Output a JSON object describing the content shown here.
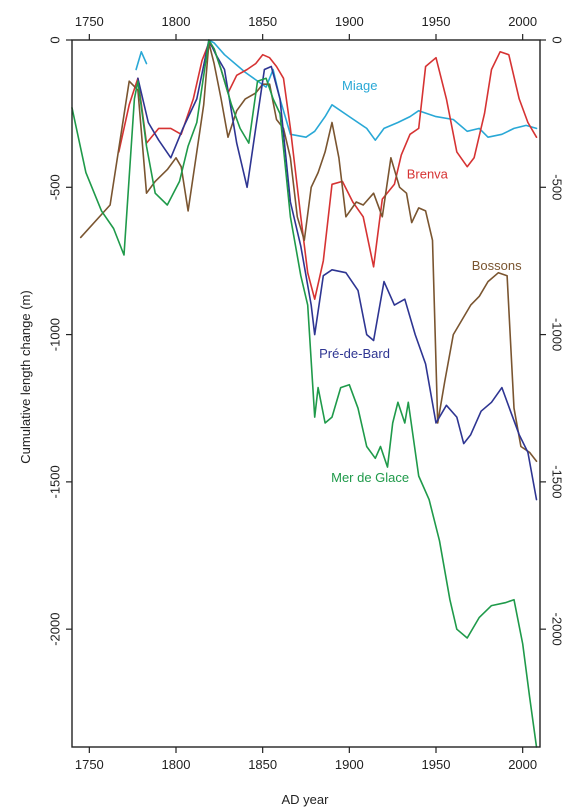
{
  "chart_data": {
    "type": "line",
    "title": "",
    "xlabel": "AD year",
    "ylabel": "Cumulative length change (m)",
    "xlim": [
      1740,
      2010
    ],
    "ylim": [
      -2400,
      0
    ],
    "x_ticks": [
      1750,
      1800,
      1850,
      1900,
      1950,
      2000
    ],
    "y_ticks": [
      0,
      -500,
      -1000,
      -1500,
      -2000
    ],
    "grid": false,
    "axes": [
      "bottom",
      "top",
      "left",
      "right"
    ],
    "series": [
      {
        "name": "Miage",
        "color": "#29a8d6",
        "segments": [
          [
            [
              1777,
              -100
            ],
            [
              1780,
              -40
            ],
            [
              1783,
              -80
            ]
          ],
          [
            [
              1819,
              0
            ],
            [
              1822,
              -10
            ],
            [
              1828,
              -50
            ],
            [
              1840,
              -110
            ],
            [
              1852,
              -160
            ],
            [
              1856,
              -100
            ],
            [
              1860,
              -200
            ],
            [
              1866,
              -320
            ],
            [
              1875,
              -330
            ],
            [
              1880,
              -310
            ],
            [
              1886,
              -260
            ],
            [
              1890,
              -220
            ],
            [
              1900,
              -260
            ],
            [
              1910,
              -300
            ],
            [
              1915,
              -340
            ],
            [
              1920,
              -300
            ],
            [
              1928,
              -280
            ],
            [
              1935,
              -260
            ],
            [
              1940,
              -240
            ],
            [
              1950,
              -260
            ],
            [
              1960,
              -270
            ],
            [
              1968,
              -310
            ],
            [
              1975,
              -300
            ],
            [
              1980,
              -330
            ],
            [
              1988,
              -320
            ],
            [
              1995,
              -300
            ],
            [
              2002,
              -290
            ],
            [
              2008,
              -300
            ]
          ]
        ]
      },
      {
        "name": "Brenva",
        "color": "#d63333",
        "segments": [
          [
            [
              1767,
              -380
            ],
            [
              1773,
              -220
            ],
            [
              1778,
              -130
            ],
            [
              1783,
              -350
            ],
            [
              1790,
              -300
            ],
            [
              1797,
              -300
            ],
            [
              1803,
              -320
            ],
            [
              1810,
              -200
            ],
            [
              1815,
              -70
            ],
            [
              1819,
              -10
            ],
            [
              1822,
              -30
            ],
            [
              1826,
              -100
            ],
            [
              1830,
              -180
            ],
            [
              1835,
              -120
            ],
            [
              1841,
              -100
            ],
            [
              1846,
              -80
            ],
            [
              1850,
              -50
            ],
            [
              1854,
              -60
            ],
            [
              1858,
              -90
            ],
            [
              1862,
              -130
            ],
            [
              1866,
              -300
            ],
            [
              1872,
              -600
            ],
            [
              1876,
              -790
            ],
            [
              1880,
              -880
            ],
            [
              1885,
              -750
            ],
            [
              1890,
              -490
            ],
            [
              1896,
              -480
            ],
            [
              1902,
              -550
            ],
            [
              1908,
              -600
            ],
            [
              1914,
              -770
            ],
            [
              1919,
              -540
            ],
            [
              1926,
              -490
            ],
            [
              1930,
              -390
            ],
            [
              1935,
              -320
            ],
            [
              1940,
              -300
            ],
            [
              1944,
              -90
            ],
            [
              1950,
              -60
            ],
            [
              1956,
              -200
            ],
            [
              1962,
              -380
            ],
            [
              1968,
              -430
            ],
            [
              1972,
              -400
            ],
            [
              1978,
              -250
            ],
            [
              1982,
              -100
            ],
            [
              1987,
              -40
            ],
            [
              1992,
              -50
            ],
            [
              1998,
              -200
            ],
            [
              2003,
              -280
            ],
            [
              2008,
              -330
            ]
          ]
        ]
      },
      {
        "name": "Bossons",
        "color": "#7a5530",
        "segments": [
          [
            [
              1745,
              -670
            ],
            [
              1762,
              -560
            ],
            [
              1773,
              -140
            ],
            [
              1778,
              -170
            ],
            [
              1783,
              -520
            ],
            [
              1788,
              -480
            ],
            [
              1795,
              -440
            ],
            [
              1800,
              -400
            ],
            [
              1803,
              -430
            ],
            [
              1807,
              -580
            ],
            [
              1812,
              -380
            ],
            [
              1816,
              -220
            ],
            [
              1819,
              -10
            ],
            [
              1822,
              -80
            ],
            [
              1826,
              -200
            ],
            [
              1830,
              -330
            ],
            [
              1835,
              -240
            ],
            [
              1840,
              -200
            ],
            [
              1846,
              -180
            ],
            [
              1850,
              -150
            ],
            [
              1854,
              -150
            ],
            [
              1858,
              -270
            ],
            [
              1862,
              -300
            ],
            [
              1866,
              -400
            ],
            [
              1870,
              -600
            ],
            [
              1874,
              -680
            ],
            [
              1878,
              -500
            ],
            [
              1882,
              -450
            ],
            [
              1886,
              -380
            ],
            [
              1890,
              -280
            ],
            [
              1894,
              -400
            ],
            [
              1898,
              -600
            ],
            [
              1904,
              -550
            ],
            [
              1908,
              -560
            ],
            [
              1914,
              -520
            ],
            [
              1919,
              -600
            ],
            [
              1924,
              -400
            ],
            [
              1929,
              -500
            ],
            [
              1933,
              -520
            ],
            [
              1936,
              -620
            ],
            [
              1940,
              -570
            ],
            [
              1944,
              -580
            ],
            [
              1948,
              -680
            ],
            [
              1951,
              -1300
            ],
            [
              1955,
              -1160
            ],
            [
              1960,
              -1000
            ],
            [
              1965,
              -950
            ],
            [
              1970,
              -900
            ],
            [
              1975,
              -870
            ],
            [
              1980,
              -820
            ],
            [
              1986,
              -790
            ],
            [
              1991,
              -800
            ],
            [
              1995,
              -1250
            ],
            [
              1999,
              -1380
            ],
            [
              2004,
              -1400
            ],
            [
              2008,
              -1430
            ]
          ]
        ]
      },
      {
        "name": "Pré-de-Bard",
        "color": "#2e3592",
        "segments": [
          [
            [
              1778,
              -130
            ],
            [
              1784,
              -280
            ],
            [
              1790,
              -340
            ],
            [
              1797,
              -400
            ],
            [
              1804,
              -300
            ],
            [
              1812,
              -200
            ],
            [
              1819,
              0
            ],
            [
              1823,
              -50
            ],
            [
              1828,
              -100
            ],
            [
              1835,
              -350
            ],
            [
              1841,
              -500
            ],
            [
              1846,
              -300
            ],
            [
              1851,
              -100
            ],
            [
              1855,
              -90
            ],
            [
              1860,
              -200
            ],
            [
              1866,
              -550
            ],
            [
              1872,
              -700
            ],
            [
              1878,
              -900
            ],
            [
              1880,
              -1000
            ],
            [
              1885,
              -800
            ],
            [
              1890,
              -780
            ],
            [
              1898,
              -790
            ],
            [
              1905,
              -850
            ],
            [
              1910,
              -1000
            ],
            [
              1914,
              -1020
            ],
            [
              1920,
              -820
            ],
            [
              1926,
              -900
            ],
            [
              1932,
              -880
            ],
            [
              1938,
              -1000
            ],
            [
              1944,
              -1100
            ],
            [
              1950,
              -1300
            ],
            [
              1956,
              -1240
            ],
            [
              1962,
              -1280
            ],
            [
              1966,
              -1370
            ],
            [
              1970,
              -1340
            ],
            [
              1976,
              -1260
            ],
            [
              1982,
              -1230
            ],
            [
              1988,
              -1180
            ],
            [
              1993,
              -1260
            ],
            [
              1998,
              -1340
            ],
            [
              2003,
              -1400
            ],
            [
              2008,
              -1560
            ]
          ]
        ]
      },
      {
        "name": "Mer de Glace",
        "color": "#1f9a4a",
        "segments": [
          [
            [
              1740,
              -230
            ],
            [
              1748,
              -450
            ],
            [
              1757,
              -580
            ],
            [
              1764,
              -640
            ],
            [
              1770,
              -730
            ],
            [
              1776,
              -200
            ],
            [
              1778,
              -140
            ],
            [
              1783,
              -360
            ],
            [
              1788,
              -520
            ],
            [
              1795,
              -560
            ],
            [
              1802,
              -480
            ],
            [
              1807,
              -360
            ],
            [
              1812,
              -280
            ],
            [
              1819,
              0
            ],
            [
              1822,
              -30
            ],
            [
              1826,
              -100
            ],
            [
              1832,
              -220
            ],
            [
              1837,
              -300
            ],
            [
              1842,
              -350
            ],
            [
              1847,
              -140
            ],
            [
              1852,
              -130
            ],
            [
              1856,
              -200
            ],
            [
              1860,
              -250
            ],
            [
              1866,
              -600
            ],
            [
              1872,
              -800
            ],
            [
              1876,
              -900
            ],
            [
              1880,
              -1280
            ],
            [
              1882,
              -1180
            ],
            [
              1886,
              -1300
            ],
            [
              1890,
              -1280
            ],
            [
              1895,
              -1180
            ],
            [
              1900,
              -1170
            ],
            [
              1905,
              -1250
            ],
            [
              1910,
              -1380
            ],
            [
              1915,
              -1420
            ],
            [
              1918,
              -1380
            ],
            [
              1922,
              -1450
            ],
            [
              1925,
              -1300
            ],
            [
              1928,
              -1230
            ],
            [
              1932,
              -1300
            ],
            [
              1934,
              -1230
            ],
            [
              1940,
              -1480
            ],
            [
              1946,
              -1560
            ],
            [
              1952,
              -1700
            ],
            [
              1958,
              -1900
            ],
            [
              1962,
              -2000
            ],
            [
              1968,
              -2030
            ],
            [
              1975,
              -1960
            ],
            [
              1982,
              -1920
            ],
            [
              1990,
              -1910
            ],
            [
              1995,
              -1900
            ],
            [
              2000,
              -2050
            ],
            [
              2004,
              -2230
            ],
            [
              2008,
              -2400
            ]
          ]
        ]
      }
    ]
  }
}
